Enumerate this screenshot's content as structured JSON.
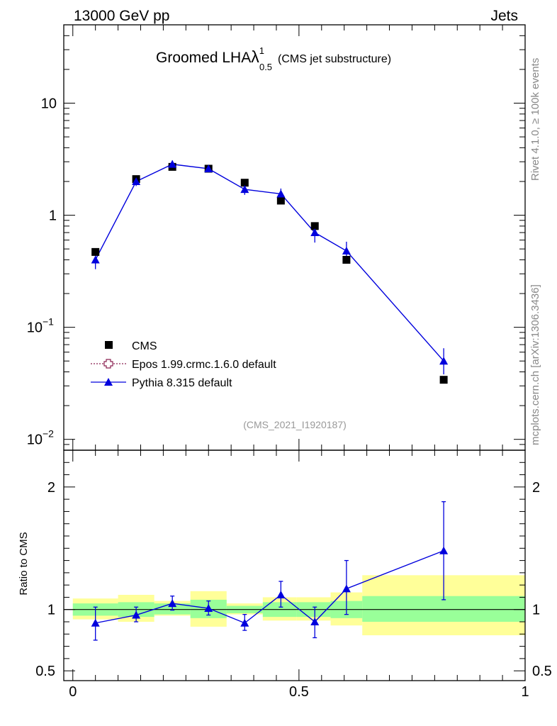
{
  "header": {
    "left": "13000 GeV pp",
    "right": "Jets"
  },
  "title": {
    "main": "Groomed LHA",
    "lambda": "λ",
    "sup": "1",
    "sub": "0.5",
    "suffix": "(CMS jet substructure)"
  },
  "side_labels": {
    "rivet": "Rivet 4.1.0, ≥ 100k events",
    "mcplots": "mcplots.cern.ch [arXiv:1306.3436]"
  },
  "analysis_tag": "(CMS_2021_I1920187)",
  "legend": [
    {
      "name": "CMS",
      "color": "#000000",
      "marker": "square"
    },
    {
      "name": "Epos 1.99.crmc.1.6.0 default",
      "color": "#8b2252",
      "marker": "open-cross"
    },
    {
      "name": "Pythia 8.315 default",
      "color": "#0000dd",
      "marker": "triangle"
    }
  ],
  "chart_data": [
    {
      "type": "scatter",
      "panel": "main",
      "yscale": "log",
      "ylim": [
        0.008,
        50
      ],
      "xlim": [
        -0.02,
        1.0
      ],
      "yticks": [
        {
          "value": 0.01,
          "base": "10",
          "exp": "−2"
        },
        {
          "value": 0.1,
          "base": "10",
          "exp": "−1"
        },
        {
          "value": 1,
          "label": "1"
        },
        {
          "value": 10,
          "label": "10"
        }
      ],
      "series": [
        {
          "name": "CMS",
          "color": "#000000",
          "x": [
            0.05,
            0.14,
            0.22,
            0.3,
            0.38,
            0.46,
            0.535,
            0.605,
            0.82
          ],
          "y": [
            0.47,
            2.1,
            2.7,
            2.6,
            1.95,
            1.35,
            0.8,
            0.4,
            0.034
          ]
        },
        {
          "name": "Pythia 8.315 default",
          "color": "#0000dd",
          "x": [
            0.05,
            0.14,
            0.22,
            0.3,
            0.38,
            0.46,
            0.535,
            0.605,
            0.82
          ],
          "y": [
            0.4,
            2.0,
            2.85,
            2.6,
            1.7,
            1.55,
            0.7,
            0.48,
            0.05
          ],
          "err_lo": [
            0.33,
            1.82,
            2.62,
            2.45,
            1.52,
            1.37,
            0.57,
            0.38,
            0.038
          ],
          "err_hi": [
            0.47,
            2.2,
            3.08,
            2.76,
            1.9,
            1.73,
            0.83,
            0.58,
            0.065
          ]
        }
      ]
    },
    {
      "type": "area",
      "panel": "ratio",
      "ylabel": "Ratio to CMS",
      "ylim": [
        0.42,
        2.3
      ],
      "xlim": [
        -0.02,
        1.0
      ],
      "yticks": [
        {
          "value": 0.5,
          "label": "0.5"
        },
        {
          "value": 1,
          "label": "1"
        },
        {
          "value": 2,
          "label": "2"
        }
      ],
      "xticks": [
        {
          "value": 0,
          "label": "0"
        },
        {
          "value": 0.5,
          "label": "0.5"
        },
        {
          "value": 1,
          "label": "1"
        }
      ],
      "bands": [
        {
          "x0": 0.0,
          "x1": 0.1,
          "stat": [
            0.95,
            1.05
          ],
          "syst": [
            0.92,
            1.09
          ]
        },
        {
          "x0": 0.1,
          "x1": 0.18,
          "stat": [
            0.94,
            1.06
          ],
          "syst": [
            0.9,
            1.12
          ]
        },
        {
          "x0": 0.18,
          "x1": 0.26,
          "stat": [
            0.96,
            1.05
          ],
          "syst": [
            0.95,
            1.07
          ]
        },
        {
          "x0": 0.26,
          "x1": 0.34,
          "stat": [
            0.93,
            1.08
          ],
          "syst": [
            0.86,
            1.15
          ]
        },
        {
          "x0": 0.34,
          "x1": 0.42,
          "stat": [
            0.97,
            1.03
          ],
          "syst": [
            0.96,
            1.05
          ]
        },
        {
          "x0": 0.42,
          "x1": 0.495,
          "stat": [
            0.94,
            1.06
          ],
          "syst": [
            0.91,
            1.1
          ]
        },
        {
          "x0": 0.495,
          "x1": 0.57,
          "stat": [
            0.94,
            1.06
          ],
          "syst": [
            0.91,
            1.1
          ]
        },
        {
          "x0": 0.57,
          "x1": 0.64,
          "stat": [
            0.93,
            1.07
          ],
          "syst": [
            0.87,
            1.14
          ]
        },
        {
          "x0": 0.64,
          "x1": 1.0,
          "stat": [
            0.9,
            1.11
          ],
          "syst": [
            0.79,
            1.28
          ]
        }
      ],
      "series": [
        {
          "name": "Pythia 8.315 default",
          "color": "#0000dd",
          "x": [
            0.05,
            0.14,
            0.22,
            0.3,
            0.38,
            0.46,
            0.535,
            0.605,
            0.82
          ],
          "y": [
            0.89,
            0.955,
            1.05,
            1.01,
            0.89,
            1.12,
            0.9,
            1.17,
            1.48
          ],
          "err_lo": [
            0.75,
            0.9,
            0.995,
            0.955,
            0.83,
            1.02,
            0.77,
            0.96,
            1.08
          ],
          "err_hi": [
            1.02,
            1.02,
            1.11,
            1.07,
            0.96,
            1.23,
            1.02,
            1.4,
            1.88
          ]
        }
      ]
    }
  ]
}
